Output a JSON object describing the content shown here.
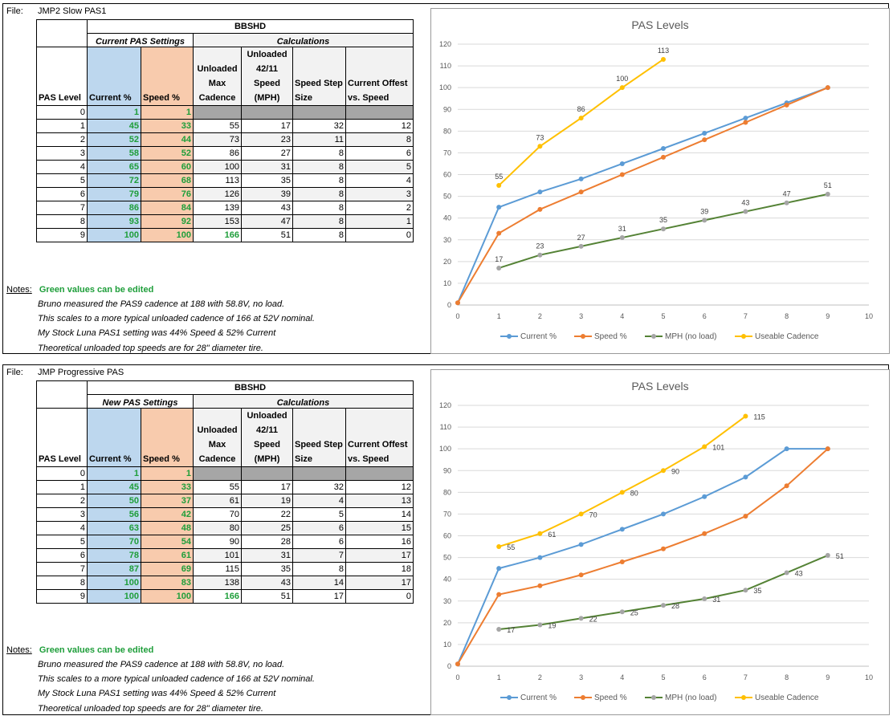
{
  "sections": [
    {
      "file_label": "File:",
      "file_name": "JMP2 Slow PAS1",
      "table": {
        "title": "BBSHD",
        "group_left": "Current  PAS Settings",
        "group_right": "Calculations",
        "headers": [
          "PAS Level",
          "Current %",
          "Speed %",
          "Unloaded Max Cadence",
          "Unloaded 42/11 Speed (MPH)",
          "Speed Step Size",
          "Current Offest vs. Speed"
        ],
        "rows": [
          [
            "0",
            "1",
            "1",
            "",
            "",
            "",
            ""
          ],
          [
            "1",
            "45",
            "33",
            "55",
            "17",
            "32",
            "12"
          ],
          [
            "2",
            "52",
            "44",
            "73",
            "23",
            "11",
            "8"
          ],
          [
            "3",
            "58",
            "52",
            "86",
            "27",
            "8",
            "6"
          ],
          [
            "4",
            "65",
            "60",
            "100",
            "31",
            "8",
            "5"
          ],
          [
            "5",
            "72",
            "68",
            "113",
            "35",
            "8",
            "4"
          ],
          [
            "6",
            "79",
            "76",
            "126",
            "39",
            "8",
            "3"
          ],
          [
            "7",
            "86",
            "84",
            "139",
            "43",
            "8",
            "2"
          ],
          [
            "8",
            "93",
            "92",
            "153",
            "47",
            "8",
            "1"
          ],
          [
            "9",
            "100",
            "100",
            "166",
            "51",
            "8",
            "0"
          ]
        ]
      },
      "notes": {
        "label": "Notes:",
        "green": "Green values can be edited",
        "lines": [
          "Bruno measured the PAS9 cadence at 188 with 58.8V, no load.",
          "This scales to a more typical unloaded cadence of 166 at 52V nominal.",
          "My Stock Luna PAS1  setting was 44% Speed & 52% Current",
          "Theoretical unloaded top speeds are for 28\" diameter tire."
        ]
      }
    },
    {
      "file_label": "File:",
      "file_name": "JMP Progressive PAS",
      "table": {
        "title": "BBSHD",
        "group_left": "New PAS Settings",
        "group_right": "Calculations",
        "headers": [
          "PAS Level",
          "Current %",
          "Speed %",
          "Unloaded Max Cadence",
          "Unloaded 42/11 Speed (MPH)",
          "Speed Step Size",
          "Current Offest vs. Speed"
        ],
        "rows": [
          [
            "0",
            "1",
            "1",
            "",
            "",
            "",
            ""
          ],
          [
            "1",
            "45",
            "33",
            "55",
            "17",
            "32",
            "12"
          ],
          [
            "2",
            "50",
            "37",
            "61",
            "19",
            "4",
            "13"
          ],
          [
            "3",
            "56",
            "42",
            "70",
            "22",
            "5",
            "14"
          ],
          [
            "4",
            "63",
            "48",
            "80",
            "25",
            "6",
            "15"
          ],
          [
            "5",
            "70",
            "54",
            "90",
            "28",
            "6",
            "16"
          ],
          [
            "6",
            "78",
            "61",
            "101",
            "31",
            "7",
            "17"
          ],
          [
            "7",
            "87",
            "69",
            "115",
            "35",
            "8",
            "18"
          ],
          [
            "8",
            "100",
            "83",
            "138",
            "43",
            "14",
            "17"
          ],
          [
            "9",
            "100",
            "100",
            "166",
            "51",
            "17",
            "0"
          ]
        ]
      },
      "notes": {
        "label": "Notes:",
        "green": "Green values can be edited",
        "lines": [
          "Bruno measured the PAS9 cadence at 188 with 58.8V, no load.",
          "This scales to a more typical unloaded cadence of 166 at 52V nominal.",
          "My Stock Luna PAS1  setting was 44% Speed & 52% Current",
          "Theoretical unloaded top speeds are for 28\" diameter tire."
        ]
      }
    }
  ],
  "colors": {
    "current": "#5b9bd5",
    "speed": "#ed7d31",
    "mph": "#548235",
    "mph_marker": "#a5a5a5",
    "cadence": "#ffc000",
    "green_text": "#1e9e3a",
    "blue_cell": "#bdd7ee",
    "pink_cell": "#f8cbad"
  },
  "chart_data": [
    {
      "type": "line",
      "title": "PAS Levels",
      "xlim": [
        0,
        10
      ],
      "ylim": [
        0,
        120
      ],
      "xticks": [
        0,
        1,
        2,
        3,
        4,
        5,
        6,
        7,
        8,
        9,
        10
      ],
      "yticks": [
        0,
        10,
        20,
        30,
        40,
        50,
        60,
        70,
        80,
        90,
        100,
        110,
        120
      ],
      "grid": true,
      "legend": "bottom",
      "label_pos": "above",
      "series": [
        {
          "name": "Current %",
          "color_key": "current",
          "x": [
            0,
            1,
            2,
            3,
            4,
            5,
            6,
            7,
            8,
            9
          ],
          "values": [
            1,
            45,
            52,
            58,
            65,
            72,
            79,
            86,
            93,
            100
          ],
          "labels": false
        },
        {
          "name": "Speed %",
          "color_key": "speed",
          "x": [
            0,
            1,
            2,
            3,
            4,
            5,
            6,
            7,
            8,
            9
          ],
          "values": [
            1,
            33,
            44,
            52,
            60,
            68,
            76,
            84,
            92,
            100
          ],
          "labels": false
        },
        {
          "name": "MPH (no load)",
          "color_key": "mph",
          "marker_key": "mph_marker",
          "x": [
            1,
            2,
            3,
            4,
            5,
            6,
            7,
            8,
            9
          ],
          "values": [
            17,
            23,
            27,
            31,
            35,
            39,
            43,
            47,
            51
          ],
          "labels": true
        },
        {
          "name": "Useable Cadence",
          "color_key": "cadence",
          "x": [
            1,
            2,
            3,
            4,
            5
          ],
          "values": [
            55,
            73,
            86,
            100,
            113
          ],
          "labels": true
        }
      ]
    },
    {
      "type": "line",
      "title": "PAS Levels",
      "xlim": [
        0,
        10
      ],
      "ylim": [
        0,
        120
      ],
      "xticks": [
        0,
        1,
        2,
        3,
        4,
        5,
        6,
        7,
        8,
        9,
        10
      ],
      "yticks": [
        0,
        10,
        20,
        30,
        40,
        50,
        60,
        70,
        80,
        90,
        100,
        110,
        120
      ],
      "grid": true,
      "legend": "bottom",
      "label_pos": "right",
      "series": [
        {
          "name": "Current %",
          "color_key": "current",
          "x": [
            0,
            1,
            2,
            3,
            4,
            5,
            6,
            7,
            8,
            9
          ],
          "values": [
            1,
            45,
            50,
            56,
            63,
            70,
            78,
            87,
            100,
            100
          ],
          "labels": false
        },
        {
          "name": "Speed %",
          "color_key": "speed",
          "x": [
            0,
            1,
            2,
            3,
            4,
            5,
            6,
            7,
            8,
            9
          ],
          "values": [
            1,
            33,
            37,
            42,
            48,
            54,
            61,
            69,
            83,
            100
          ],
          "labels": false
        },
        {
          "name": "MPH (no load)",
          "color_key": "mph",
          "marker_key": "mph_marker",
          "x": [
            1,
            2,
            3,
            4,
            5,
            6,
            7,
            8,
            9
          ],
          "values": [
            17,
            19,
            22,
            25,
            28,
            31,
            35,
            43,
            51
          ],
          "labels": true
        },
        {
          "name": "Useable Cadence",
          "color_key": "cadence",
          "x": [
            1,
            2,
            3,
            4,
            5,
            6,
            7
          ],
          "values": [
            55,
            61,
            70,
            80,
            90,
            101,
            115
          ],
          "labels": true
        }
      ]
    }
  ]
}
